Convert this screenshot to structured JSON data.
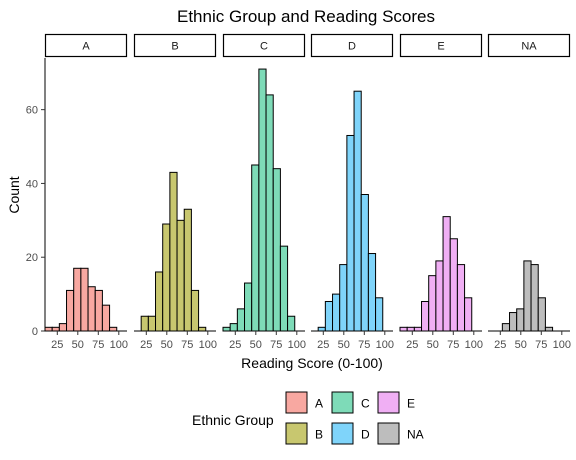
{
  "chart_data": {
    "type": "bar",
    "title": "Ethnic Group and Reading Scores",
    "xlabel": "Reading Score (0-100)",
    "ylabel": "Count",
    "xlim": [
      10,
      110
    ],
    "ylim": [
      0,
      74
    ],
    "x_ticks": [
      25,
      50,
      75,
      100
    ],
    "y_ticks": [
      0,
      20,
      40,
      60
    ],
    "bin_edges": [
      10,
      18.75,
      27.5,
      36.25,
      45,
      53.75,
      62.5,
      71.25,
      80,
      88.75,
      97.5,
      106.25
    ],
    "grid": false,
    "panel_border": false,
    "facet_by": "Ethnic Group",
    "series": [
      {
        "name": "A",
        "color": "#F8A8A1",
        "counts": [
          1,
          1,
          2,
          11,
          17,
          17,
          12,
          11,
          7,
          1,
          0
        ]
      },
      {
        "name": "B",
        "color": "#C8C76F",
        "counts": [
          0,
          4,
          4,
          16,
          29,
          43,
          30,
          33,
          11,
          1,
          0
        ]
      },
      {
        "name": "C",
        "color": "#7EDBB8",
        "counts": [
          1,
          2,
          6,
          13,
          45,
          71,
          64,
          44,
          23,
          4,
          0
        ]
      },
      {
        "name": "D",
        "color": "#7FD4FA",
        "counts": [
          0,
          1,
          8,
          10,
          18,
          53,
          65,
          37,
          21,
          9,
          0
        ]
      },
      {
        "name": "E",
        "color": "#F0AFF4",
        "counts": [
          1,
          1,
          1,
          8,
          15,
          19,
          31,
          25,
          18,
          9,
          0
        ]
      },
      {
        "name": "NA",
        "color": "#BDBDBD",
        "counts": [
          0,
          0,
          2,
          5,
          6,
          19,
          18,
          9,
          1,
          0,
          0
        ]
      }
    ],
    "legend": {
      "title": "Ethnic Group",
      "position": "bottom",
      "entries": [
        "A",
        "B",
        "C",
        "D",
        "E",
        "NA"
      ]
    }
  }
}
